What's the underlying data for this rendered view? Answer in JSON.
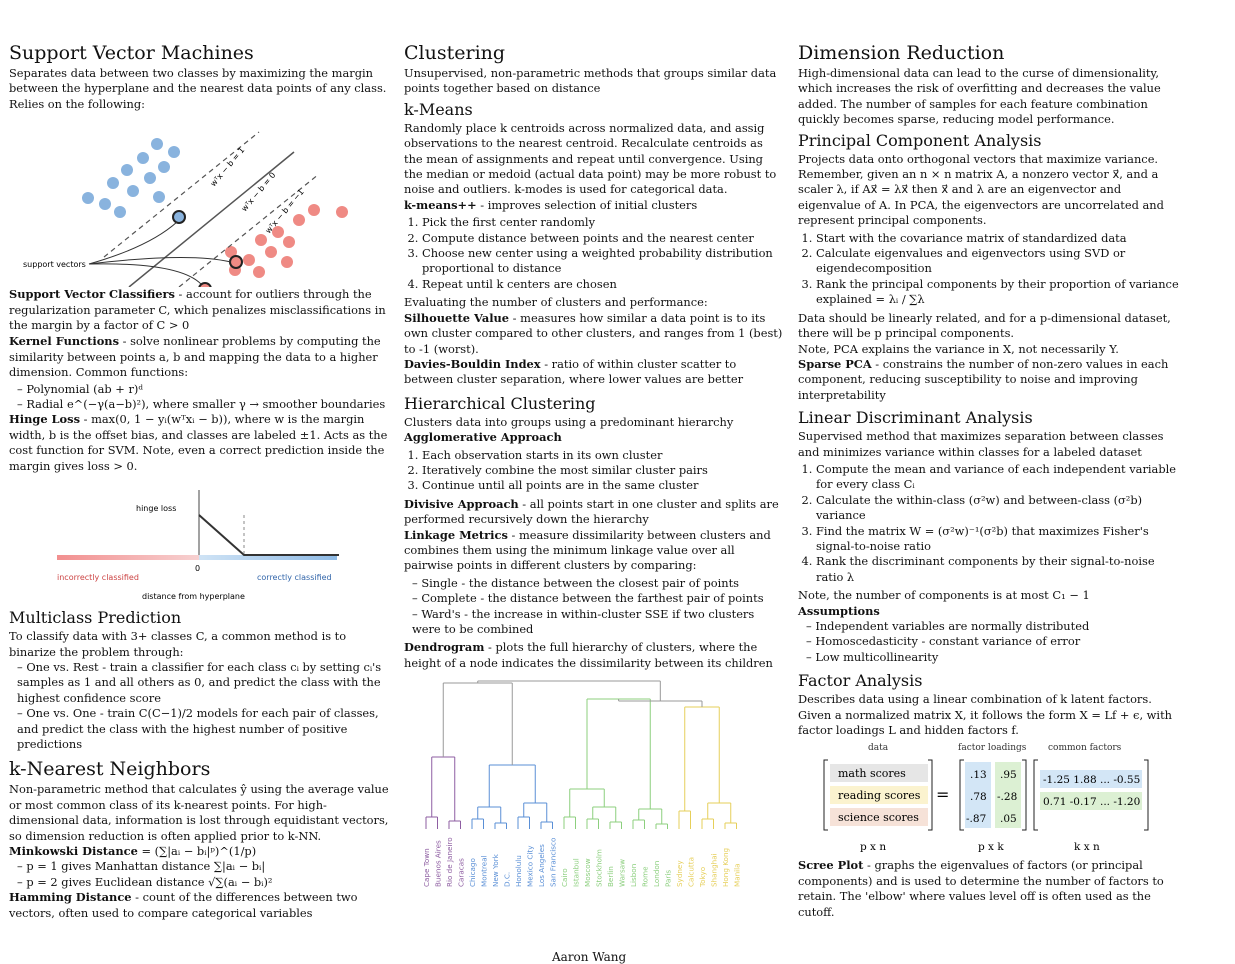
{
  "svm": {
    "title": "Support Vector Machines",
    "intro": "Separates data between two classes by maximizing the margin between the hyperplane and the nearest data points of any class. Relies on the following:",
    "fig_support_label": "support vectors",
    "fig_eq_top": "wᵀx − b = 1",
    "fig_eq_mid": "wᵀx − b = 0",
    "fig_eq_bot": "wᵀx − b = −1",
    "svc_term": "Support Vector Classifiers",
    "svc_text": " - account for outliers through the regularization parameter C, which penalizes misclassifications in the margin by a factor of C > 0",
    "kernel_term": "Kernel Functions",
    "kernel_text": " - solve nonlinear problems by computing the similarity between points a, b and mapping the data to a higher dimension. Common functions:",
    "kernel_items": [
      "Polynomial (ab + r)ᵈ",
      "Radial e^(−γ(a−b)²), where smaller γ → smoother boundaries"
    ],
    "hinge_term": "Hinge Loss",
    "hinge_text": " - max(0, 1 − yᵢ(wᵀxᵢ − b)), where w is the margin width, b is the offset bias, and classes are labeled ±1. Acts as the cost function for SVM. Note, even a correct prediction inside the margin gives loss > 0.",
    "hinge_fig": {
      "ylabel": "hinge loss",
      "left_label": "incorrectly classified",
      "zero_label": "0",
      "right_label": "correctly classified",
      "xlabel": "distance from hyperplane"
    }
  },
  "multiclass": {
    "title": "Multiclass Prediction",
    "intro": "To classify data with 3+ classes C, a common method is to binarize the problem through:",
    "items": [
      "One vs. Rest - train a classifier for each class cᵢ by setting cᵢ's samples as 1 and all others as 0, and predict the class with the highest confidence score",
      "One vs. One - train C(C−1)/2 models for each pair of classes, and predict the class with the highest number of positive predictions"
    ]
  },
  "knn": {
    "title": "k-Nearest Neighbors",
    "intro": "Non-parametric method that calculates ŷ using the average value or most common class of its k-nearest points. For high-dimensional data, information is lost through equidistant vectors, so dimension reduction is often applied prior to k-NN.",
    "mink_term": "Minkowski Distance",
    "mink_text": " = (∑|aᵢ − bᵢ|ᵖ)^(1/p)",
    "mink_items": [
      "p = 1 gives Manhattan distance ∑|aᵢ − bᵢ|",
      "p = 2 gives Euclidean distance √∑(aᵢ − bᵢ)²"
    ],
    "ham_term": "Hamming Distance",
    "ham_text": " - count of the differences between two vectors, often used to compare categorical variables"
  },
  "clustering": {
    "title": "Clustering",
    "intro": "Unsupervised, non-parametric methods that groups similar data points together based on distance",
    "kmeans_title": "k-Means",
    "kmeans_text": "Randomly place k centroids across normalized data, and assig observations to the nearest centroid. Recalculate centroids as the mean of assignments and repeat until convergence. Using the median or medoid (actual data point) may be more robust to noise and outliers. k-modes is used for categorical data.",
    "kmpp_term": "k-means++",
    "kmpp_text": " - improves selection of initial clusters",
    "kmeans_steps": [
      "Pick the first center randomly",
      "Compute distance between points and the nearest center",
      "Choose new center using a weighted probability distribution proportional to distance",
      "Repeat until k centers are chosen"
    ],
    "eval_text": "Evaluating the number of clusters and performance:",
    "sil_term": "Silhouette Value",
    "sil_text": " - measures how similar a data point is to its own cluster compared to other clusters, and ranges from 1 (best) to -1 (worst).",
    "db_term": "Davies-Bouldin Index",
    "db_text": " - ratio of within cluster scatter to between cluster separation, where lower values are better",
    "hier_title": "Hierarchical Clustering",
    "hier_intro": "Clusters data into groups using a predominant hierarchy",
    "agg_term": "Agglomerative Approach",
    "agg_steps": [
      "Each observation starts in its own cluster",
      "Iteratively combine the most similar cluster pairs",
      "Continue until all points are in the same cluster"
    ],
    "div_term": "Divisive Approach",
    "div_text": " - all points start in one cluster and splits are performed recursively down the hierarchy",
    "link_term": "Linkage Metrics",
    "link_text": " - measure dissimilarity between clusters and combines them using the minimum linkage value over all pairwise points in different clusters by comparing:",
    "link_items": [
      "Single - the distance between the closest pair of points",
      "Complete - the distance between the farthest pair of points",
      "Ward's - the increase in within-cluster SSE if two clusters were to be combined"
    ],
    "dendro_term": "Dendrogram",
    "dendro_text": " - plots the full hierarchy of clusters, where the height of a node indicates the dissimilarity between its children",
    "cities": [
      "Cape Town",
      "Buenos Aires",
      "Rio de Janeiro",
      "Caracas",
      "Chicago",
      "Montreal",
      "New York",
      "D.C.",
      "Honolulu",
      "Mexico City",
      "Los Angeles",
      "San Francisco",
      "Cairo",
      "Istanbul",
      "Moscow",
      "Stockholm",
      "Berlin",
      "Warsaw",
      "Lisbon",
      "Rome",
      "London",
      "Paris",
      "Sydney",
      "Calcutta",
      "Tokyo",
      "Shanghai",
      "Hong Kong",
      "Manila"
    ],
    "colors": {
      "purple": "#8e5ea2",
      "blue": "#5a8fd6",
      "green": "#8ccf7e",
      "yellow": "#e6cf5a",
      "gray": "#999999"
    }
  },
  "dimred": {
    "title": "Dimension Reduction",
    "intro": "High-dimensional data can lead to the curse of dimensionality, which increases the risk of overfitting and decreases the value added. The number of samples for each feature combination quickly becomes sparse, reducing model performance.",
    "pca_title": "Principal Component Analysis",
    "pca_text": "Projects data onto orthogonal vectors that maximize variance. Remember, given an n × n matrix A, a nonzero vector x⃗, and a scaler λ, if Ax⃗ = λx⃗ then x⃗ and λ are an eigenvector and eigenvalue of A. In PCA, the eigenvectors are uncorrelated and represent principal components.",
    "pca_steps": [
      "Start with the covariance matrix of standardized data",
      "Calculate eigenvalues and eigenvectors using SVD or eigendecomposition",
      "Rank the principal components by their proportion of variance explained = λᵢ / ∑λ"
    ],
    "pca_note1": "Data should be linearly related, and for a p-dimensional dataset, there will be p principal components.",
    "pca_note2": "Note, PCA explains the variance in X, not necessarily Y.",
    "spca_term": "Sparse PCA",
    "spca_text": " - constrains the number of non-zero values in each component, reducing susceptibility to noise and improving interpretability",
    "lda_title": "Linear Discriminant Analysis",
    "lda_intro": "Supervised method that maximizes separation between classes and minimizes variance within classes for a labeled dataset",
    "lda_steps": [
      "Compute the mean and variance of each independent variable for every class Cᵢ",
      "Calculate the within-class (σ²w) and between-class (σ²b) variance",
      "Find the matrix W = (σ²w)⁻¹(σ²b) that maximizes Fisher's signal-to-noise ratio",
      "Rank the discriminant components by their signal-to-noise ratio λ"
    ],
    "lda_note": "Note, the number of components is at most C₁ − 1",
    "assume_term": "Assumptions",
    "assume_items": [
      "Independent variables are normally distributed",
      "Homoscedasticity - constant variance of error",
      "Low multicollinearity"
    ],
    "fa_title": "Factor Analysis",
    "fa_intro": "Describes data using a linear combination of k latent factors. Given a normalized matrix X, it follows the form X = Lf + ϵ, with factor loadings L and hidden factors f.",
    "fa_fig": {
      "h_data": "data",
      "h_loadings": "factor loadings",
      "h_common": "common factors",
      "rows": [
        "math scores",
        "reading scores",
        "science scores"
      ],
      "loadings": [
        [
          ".13",
          ".95"
        ],
        [
          ".78",
          "-.28"
        ],
        [
          "-.87",
          ".05"
        ]
      ],
      "factors": [
        "-1.25 1.88 ... -0.55",
        "0.71 -0.17 ... -1.20"
      ],
      "dim_data": "p x n",
      "dim_load": "p x k",
      "dim_fac": "k x n",
      "eq": "="
    },
    "scree_term": "Scree Plot",
    "scree_text": " - graphs the eigenvalues of factors (or principal components) and is used to determine the number of factors to retain. The 'elbow' where values level off is often used as the cutoff."
  },
  "footer": "Aaron Wang"
}
